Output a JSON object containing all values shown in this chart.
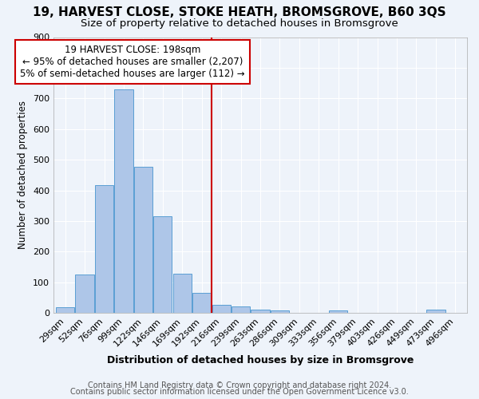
{
  "title": "19, HARVEST CLOSE, STOKE HEATH, BROMSGROVE, B60 3QS",
  "subtitle": "Size of property relative to detached houses in Bromsgrove",
  "xlabel": "Distribution of detached houses by size in Bromsgrove",
  "ylabel": "Number of detached properties",
  "bar_labels": [
    "29sqm",
    "52sqm",
    "76sqm",
    "99sqm",
    "122sqm",
    "146sqm",
    "169sqm",
    "192sqm",
    "216sqm",
    "239sqm",
    "263sqm",
    "286sqm",
    "309sqm",
    "333sqm",
    "356sqm",
    "379sqm",
    "403sqm",
    "426sqm",
    "449sqm",
    "473sqm",
    "496sqm"
  ],
  "bar_values": [
    18,
    125,
    418,
    730,
    478,
    315,
    128,
    65,
    28,
    22,
    10,
    8,
    0,
    0,
    8,
    0,
    0,
    0,
    0,
    10,
    0
  ],
  "bar_color": "#aec6e8",
  "bar_edge_color": "#5a9fd4",
  "vline_color": "#cc0000",
  "vline_x_index": 7.5,
  "annotation_line1": "19 HARVEST CLOSE: 198sqm",
  "annotation_line2": "← 95% of detached houses are smaller (2,207)",
  "annotation_line3": "5% of semi-detached houses are larger (112) →",
  "annotation_box_color": "white",
  "annotation_box_edge_color": "#cc0000",
  "ylim": [
    0,
    900
  ],
  "yticks": [
    0,
    100,
    200,
    300,
    400,
    500,
    600,
    700,
    800,
    900
  ],
  "footer_line1": "Contains HM Land Registry data © Crown copyright and database right 2024.",
  "footer_line2": "Contains public sector information licensed under the Open Government Licence v3.0.",
  "bg_color": "#eef3fa",
  "grid_color": "white",
  "title_fontsize": 11,
  "subtitle_fontsize": 9.5,
  "xlabel_fontsize": 9,
  "ylabel_fontsize": 8.5,
  "tick_fontsize": 8,
  "annotation_fontsize": 8.5,
  "footer_fontsize": 7
}
